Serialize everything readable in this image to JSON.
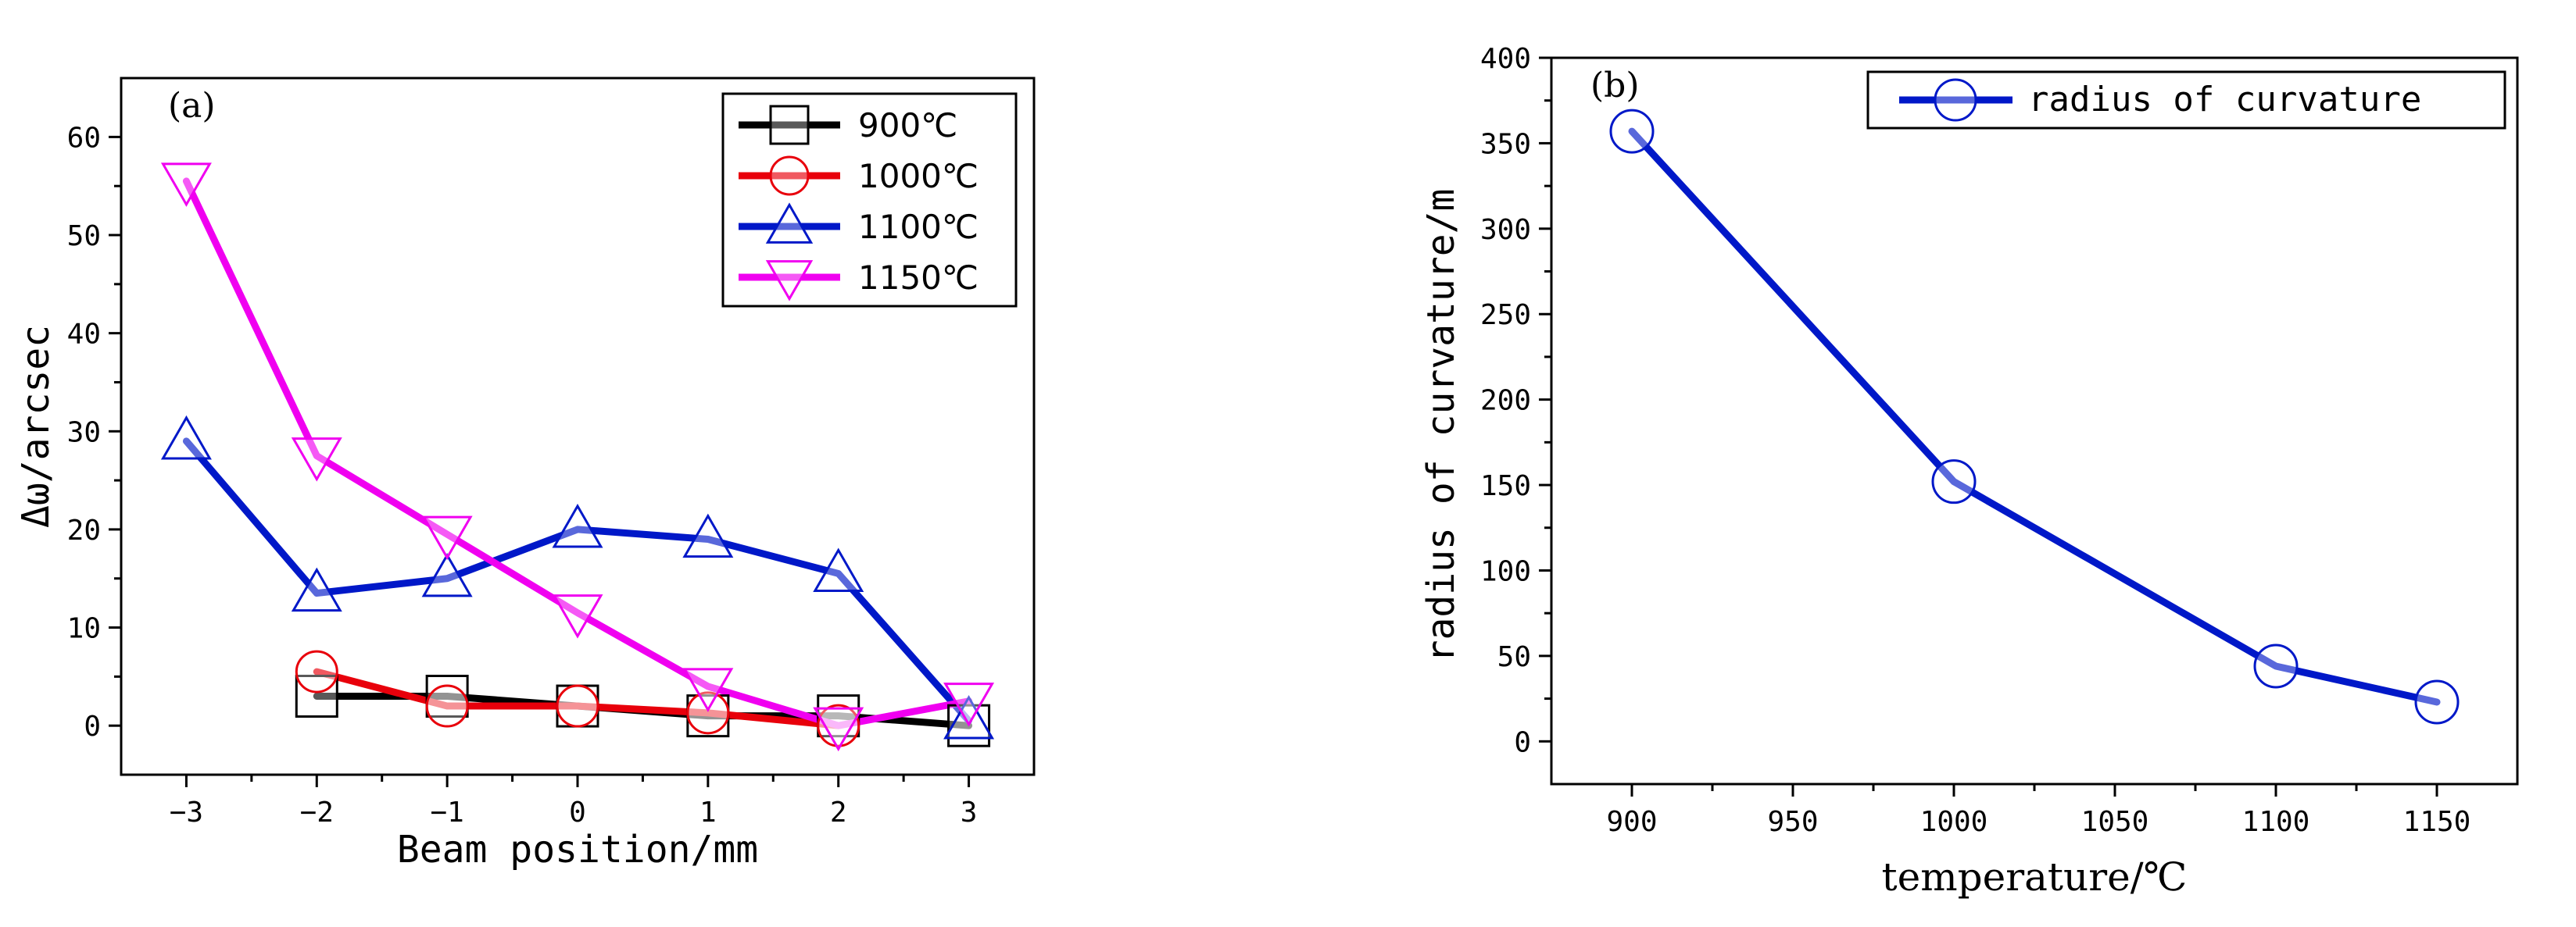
{
  "chart_data": [
    {
      "type": "line",
      "panel_label": "(a)",
      "xlabel": "Beam position/mm",
      "ylabel": "Δω/arcsec",
      "xlim": [
        -3.5,
        3.5
      ],
      "ylim": [
        -5,
        66
      ],
      "xticks": [
        -3,
        -2,
        -1,
        0,
        1,
        2,
        3
      ],
      "xtick_labels": [
        "−3",
        "−2",
        "−1",
        "0",
        "1",
        "2",
        "3"
      ],
      "yticks": [
        0,
        10,
        20,
        30,
        40,
        50,
        60
      ],
      "ytick_labels": [
        "0",
        "10",
        "20",
        "30",
        "40",
        "50",
        "60"
      ],
      "legend_position": "top-right",
      "series": [
        {
          "name": "900℃",
          "color": "#000000",
          "marker": "square",
          "x": [
            -2,
            -1,
            0,
            1,
            2,
            3
          ],
          "values": [
            3,
            3,
            2,
            1,
            1,
            0
          ]
        },
        {
          "name": "1000℃",
          "color": "#e8000b",
          "marker": "circle",
          "x": [
            -2,
            -1,
            0,
            1,
            2
          ],
          "values": [
            5.5,
            2,
            2,
            1.3,
            0
          ]
        },
        {
          "name": "1100℃",
          "color": "#0018c8",
          "marker": "triangle-up",
          "x": [
            -3,
            -2,
            -1,
            0,
            1,
            2,
            3
          ],
          "values": [
            29,
            13.5,
            15,
            20,
            19,
            15.5,
            0.5
          ]
        },
        {
          "name": "1150℃",
          "color": "#f000f0",
          "marker": "triangle-down",
          "x": [
            -3,
            -2,
            -1,
            0,
            1,
            2,
            3
          ],
          "values": [
            55.5,
            27.5,
            19.5,
            11.5,
            4,
            0,
            2.5
          ]
        }
      ]
    },
    {
      "type": "line",
      "panel_label": "(b)",
      "xlabel": "temperature/℃",
      "ylabel": "radius of curvature/m",
      "xlim": [
        875,
        1175
      ],
      "ylim": [
        -25,
        400
      ],
      "xticks": [
        900,
        950,
        1000,
        1050,
        1100,
        1150
      ],
      "xtick_labels": [
        "900",
        "950",
        "1000",
        "1050",
        "1100",
        "1150"
      ],
      "yticks": [
        0,
        50,
        100,
        150,
        200,
        250,
        300,
        350,
        400
      ],
      "ytick_labels": [
        "0",
        "50",
        "100",
        "150",
        "200",
        "250",
        "300",
        "350",
        "400"
      ],
      "legend_position": "top-right",
      "series": [
        {
          "name": "radius of curvature",
          "color": "#0018c8",
          "marker": "circle",
          "x": [
            900,
            1000,
            1100,
            1150
          ],
          "values": [
            357,
            152,
            44,
            23
          ]
        }
      ]
    }
  ]
}
